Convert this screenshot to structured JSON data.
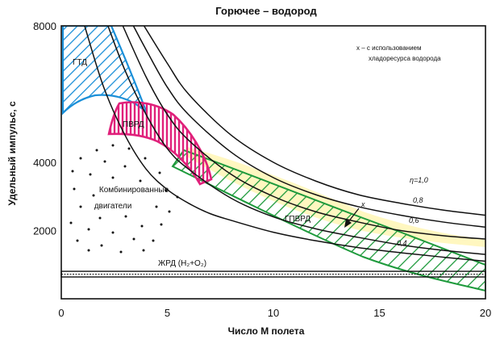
{
  "chart_data": {
    "type": "line",
    "title": "Горючее – водород",
    "xlabel": "Число М полета",
    "ylabel": "Удельный импульс, с",
    "xlim": [
      0,
      20
    ],
    "ylim": [
      0,
      8000
    ],
    "x_ticks": [
      "0",
      "5",
      "10",
      "15",
      "20"
    ],
    "y_ticks": [
      {
        "value": 2000,
        "label": "2000"
      },
      {
        "value": 4000,
        "label": "4000"
      },
      {
        "value": 8000,
        "label": "8000"
      }
    ],
    "legend_note": [
      "x – с использованием",
      "хладоресурса водорода"
    ],
    "series": [
      {
        "name": "η=1,0",
        "x": [
          3.9,
          5,
          6,
          8,
          10,
          12,
          14,
          16,
          18,
          20
        ],
        "y": [
          8000,
          6900,
          6000,
          4800,
          4000,
          3450,
          3050,
          2800,
          2600,
          2450
        ]
      },
      {
        "name": "0,8",
        "x": [
          3.4,
          4,
          5,
          6,
          8,
          10,
          12,
          14,
          16,
          18,
          20
        ],
        "y": [
          8000,
          7300,
          6200,
          5400,
          4300,
          3550,
          3050,
          2700,
          2450,
          2250,
          2100
        ]
      },
      {
        "name": "0,6",
        "x": [
          2.9,
          4,
          5,
          6,
          8,
          10,
          12,
          14,
          16,
          18,
          20
        ],
        "y": [
          8000,
          6500,
          5400,
          4650,
          3650,
          3000,
          2550,
          2250,
          2000,
          1850,
          1750
        ]
      },
      {
        "name": "0,4",
        "x": [
          2.2,
          3,
          4,
          5,
          6,
          8,
          10,
          12,
          14,
          16,
          18,
          20
        ],
        "y": [
          8000,
          6700,
          5400,
          4400,
          3800,
          2950,
          2400,
          2050,
          1800,
          1580,
          1420,
          1300
        ]
      },
      {
        "name": "",
        "x": [
          1.1,
          2,
          3,
          4,
          5,
          6,
          7,
          8,
          10,
          12,
          14,
          16,
          18,
          20
        ],
        "y": [
          8000,
          6200,
          4800,
          3800,
          3200,
          2800,
          2500,
          2300,
          1950,
          1700,
          1500,
          1350,
          1220,
          1100
        ]
      }
    ],
    "regions": [
      {
        "name": "ГТД",
        "color": "#1a8fd8"
      },
      {
        "name": "ПВРД",
        "color": "#e0207a"
      },
      {
        "name": "ГПВРД",
        "color": "#1e9a3c",
        "fill": "#fff7c0"
      },
      {
        "name": "Комбинированные двигатели"
      },
      {
        "name": "ЖРД (H₂+O₂)",
        "y": [
          500,
          620
        ]
      }
    ],
    "arrow_label": "x",
    "grid": false
  }
}
